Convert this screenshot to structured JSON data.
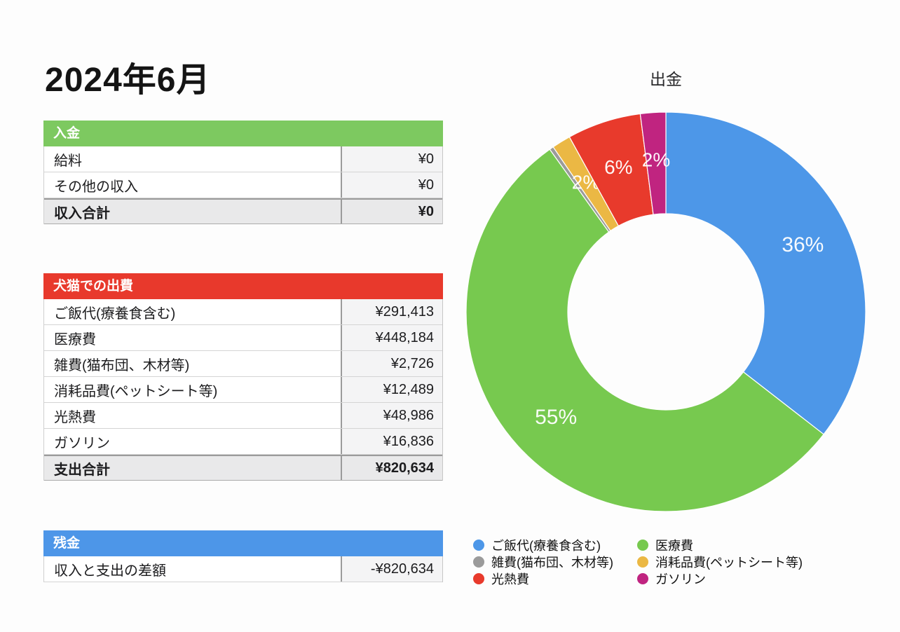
{
  "page": {
    "title": "2024年6月"
  },
  "tables": {
    "income": {
      "header": "入金",
      "header_color": "#7dc960",
      "rows": [
        {
          "label": "給料",
          "value": "¥0"
        },
        {
          "label": "その他の収入",
          "value": "¥0"
        }
      ],
      "total": {
        "label": "収入合計",
        "value": "¥0"
      }
    },
    "expense": {
      "header": "犬猫での出費",
      "header_color": "#e8392c",
      "rows": [
        {
          "label": "ご飯代(療養食含む)",
          "value": "¥291,413"
        },
        {
          "label": "医療費",
          "value": "¥448,184"
        },
        {
          "label": "雑費(猫布団、木材等)",
          "value": "¥2,726"
        },
        {
          "label": "消耗品費(ペットシート等)",
          "value": "¥12,489"
        },
        {
          "label": "光熱費",
          "value": "¥48,986"
        },
        {
          "label": "ガソリン",
          "value": "¥16,836"
        }
      ],
      "total": {
        "label": "支出合計",
        "value": "¥820,634"
      }
    },
    "balance": {
      "header": "残金",
      "header_color": "#4d96e8",
      "rows": [
        {
          "label": "収入と支出の差額",
          "value": "-¥820,634"
        }
      ],
      "total": null
    }
  },
  "chart_data": {
    "type": "pie",
    "donut": true,
    "title": "出金",
    "start_angle_deg": 0,
    "inner_radius_ratio": 0.49,
    "legend_position": "bottom",
    "legend_columns": 2,
    "slices": [
      {
        "label": "ご飯代(療養食含む)",
        "value": 291413,
        "pct": 36,
        "pct_label": "36%",
        "color": "#4d97e8"
      },
      {
        "label": "医療費",
        "value": 448184,
        "pct": 55,
        "pct_label": "55%",
        "color": "#77c94f"
      },
      {
        "label": "雑費(猫布団、木材等)",
        "value": 2726,
        "pct": 0,
        "pct_label": "",
        "color": "#9b9b9b"
      },
      {
        "label": "消耗品費(ペットシート等)",
        "value": 12489,
        "pct": 2,
        "pct_label": "2%",
        "color": "#ebb844"
      },
      {
        "label": "光熱費",
        "value": 48986,
        "pct": 6,
        "pct_label": "6%",
        "color": "#e83a2c"
      },
      {
        "label": "ガソリン",
        "value": 16836,
        "pct": 2,
        "pct_label": "2%",
        "color": "#c02480"
      }
    ]
  }
}
